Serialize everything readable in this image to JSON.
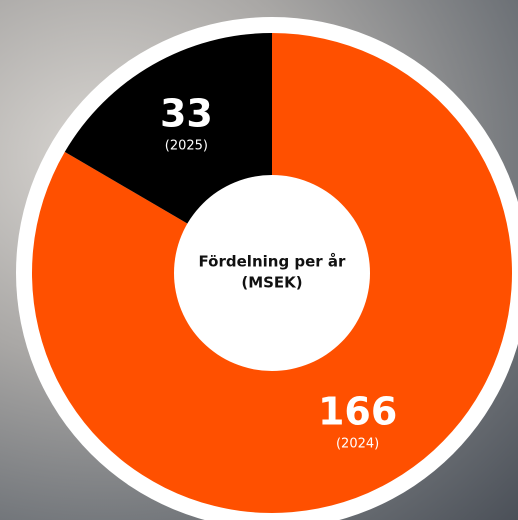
{
  "chart_data": {
    "type": "donut",
    "title": "Fördelning per år",
    "subtitle": "(MSEK)",
    "categories": [
      "(2024)",
      "(2025)"
    ],
    "values": [
      166,
      33
    ],
    "colors": [
      "#ff5000",
      "#000000"
    ]
  }
}
